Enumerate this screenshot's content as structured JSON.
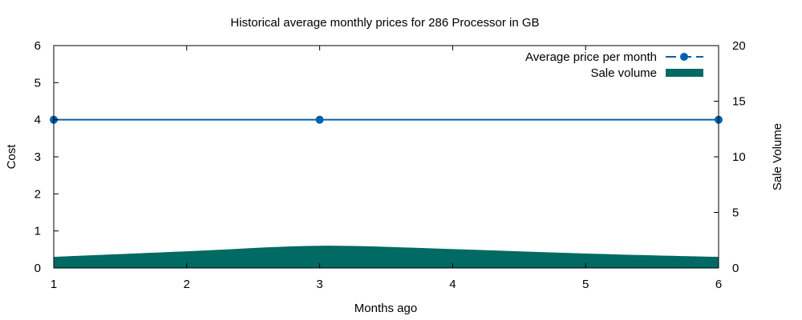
{
  "chart_data": {
    "type": "line",
    "title": "Historical average monthly prices for 286 Processor in GB",
    "xlabel": "Months ago",
    "ylabel": "Cost",
    "y2label": "Sale Volume",
    "xlim": [
      1,
      6
    ],
    "ylim": [
      0,
      6
    ],
    "y2lim": [
      0,
      20
    ],
    "x_ticks": [
      1,
      2,
      3,
      4,
      5,
      6
    ],
    "y_ticks": [
      0,
      1,
      2,
      3,
      4,
      5,
      6
    ],
    "y2_ticks": [
      0,
      5,
      10,
      15,
      20
    ],
    "grid": false,
    "legend_position": "top-right",
    "series": [
      {
        "name": "Average price per month",
        "kind": "line",
        "axis": "y",
        "color": "#0060ad",
        "x": [
          1,
          3,
          6
        ],
        "values": [
          4,
          4,
          4
        ]
      },
      {
        "name": "Sale volume",
        "kind": "area",
        "axis": "y2",
        "color": "#006a63",
        "x": [
          1,
          2,
          3,
          4,
          5,
          6
        ],
        "values": [
          1,
          1.5,
          2,
          1.7,
          1.3,
          1
        ]
      }
    ]
  }
}
